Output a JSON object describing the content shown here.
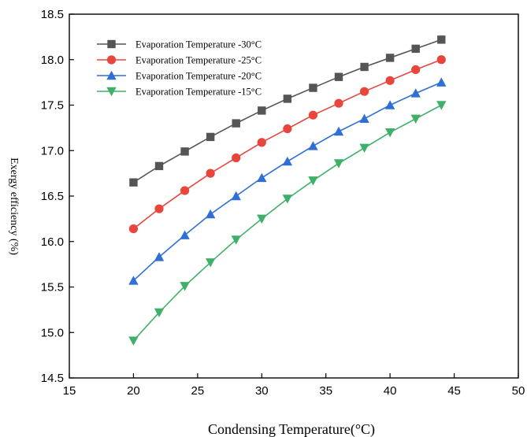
{
  "chart_data": {
    "type": "line",
    "title": "",
    "xlabel": "Condensing Temperature(°C)",
    "ylabel": "Exergy efficiency (%)",
    "xlim": [
      15,
      50
    ],
    "ylim": [
      14.5,
      18.5
    ],
    "xticks": [
      15,
      20,
      25,
      30,
      35,
      40,
      45,
      50
    ],
    "yticks": [
      14.5,
      15.0,
      15.5,
      16.0,
      16.5,
      17.0,
      17.5,
      18.0,
      18.5
    ],
    "x": [
      20,
      22,
      24,
      26,
      28,
      30,
      32,
      34,
      36,
      38,
      40,
      42,
      44
    ],
    "grid": false,
    "legend_position": "top-left",
    "series": [
      {
        "name": "Evaporation Temperature -30°C",
        "color": "#555555",
        "marker": "square",
        "values": [
          16.65,
          16.83,
          16.99,
          17.15,
          17.3,
          17.44,
          17.57,
          17.69,
          17.81,
          17.92,
          18.02,
          18.12,
          18.22
        ]
      },
      {
        "name": "Evaporation Temperature -25°C",
        "color": "#e8453c",
        "marker": "circle",
        "values": [
          16.14,
          16.36,
          16.56,
          16.75,
          16.92,
          17.09,
          17.24,
          17.39,
          17.52,
          17.65,
          17.77,
          17.89,
          18.0
        ]
      },
      {
        "name": "Evaporation Temperature -20°C",
        "color": "#2f6fd6",
        "marker": "triangle-up",
        "values": [
          15.57,
          15.83,
          16.07,
          16.3,
          16.5,
          16.7,
          16.88,
          17.05,
          17.21,
          17.35,
          17.5,
          17.63,
          17.75
        ]
      },
      {
        "name": "Evaporation Temperature -15°C",
        "color": "#3fb06a",
        "marker": "triangle-down",
        "values": [
          14.91,
          15.22,
          15.51,
          15.77,
          16.02,
          16.25,
          16.47,
          16.67,
          16.86,
          17.03,
          17.2,
          17.35,
          17.5
        ]
      }
    ]
  }
}
